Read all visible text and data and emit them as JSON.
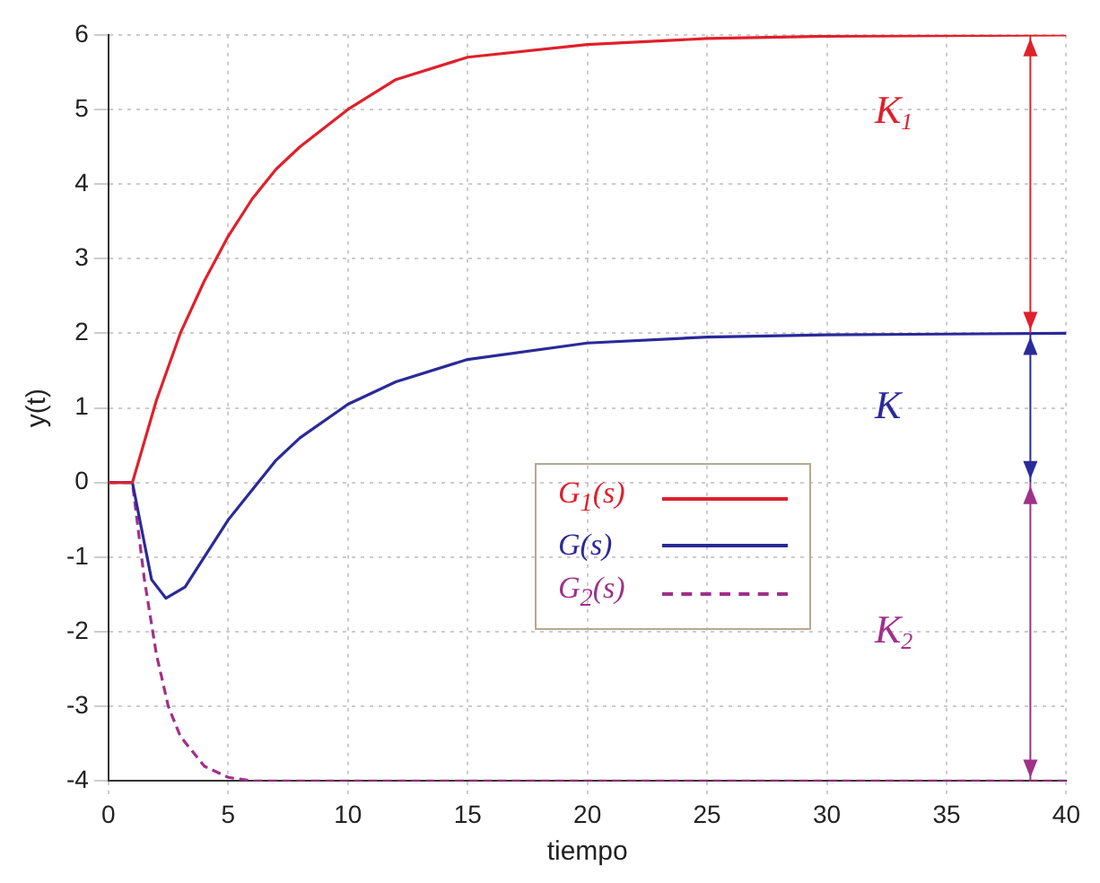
{
  "chart_data": {
    "type": "line",
    "xlabel": "tiempo",
    "ylabel": "y(t)",
    "xlim": [
      0,
      40
    ],
    "ylim": [
      -4,
      6
    ],
    "xticks": [
      0,
      5,
      10,
      15,
      20,
      25,
      30,
      35,
      40
    ],
    "yticks": [
      -4,
      -3,
      -2,
      -1,
      0,
      1,
      2,
      3,
      4,
      5,
      6
    ],
    "grid": true,
    "legend": "center",
    "marker": "none",
    "series": [
      {
        "name": "G$_{1}$(s)",
        "color": "#e0202a",
        "line_style": "solid",
        "x": [
          0,
          1,
          2,
          3,
          4,
          5,
          6,
          7,
          8,
          10,
          12,
          15,
          20,
          25,
          30,
          35,
          40
        ],
        "values": [
          0,
          0,
          1.1,
          2,
          2.7,
          3.3,
          3.8,
          4.2,
          4.5,
          5,
          5.4,
          5.7,
          5.87,
          5.95,
          5.98,
          5.99,
          6
        ]
      },
      {
        "name": "G(s)",
        "color": "#2a2a9a",
        "line_style": "solid",
        "x": [
          0,
          1,
          1.8,
          2.4,
          3.2,
          4,
          5,
          6,
          7,
          8,
          10,
          12,
          15,
          20,
          25,
          30,
          35,
          40
        ],
        "values": [
          0,
          0,
          -1.3,
          -1.55,
          -1.4,
          -1,
          -0.5,
          -0.1,
          0.3,
          0.6,
          1.05,
          1.35,
          1.65,
          1.87,
          1.95,
          1.98,
          1.99,
          2
        ]
      },
      {
        "name": "G$_{2}$(s)",
        "color": "#a0308a",
        "line_style": "dashed",
        "x": [
          0,
          1,
          1.5,
          2,
          2.5,
          3,
          4,
          5,
          6,
          8,
          40
        ],
        "values": [
          0,
          0,
          -1.3,
          -2.3,
          -3,
          -3.4,
          -3.8,
          -3.95,
          -4,
          -4,
          -4
        ]
      }
    ],
    "annotations": [
      "K$_{1}$",
      "K",
      "K$_{2}$"
    ]
  }
}
